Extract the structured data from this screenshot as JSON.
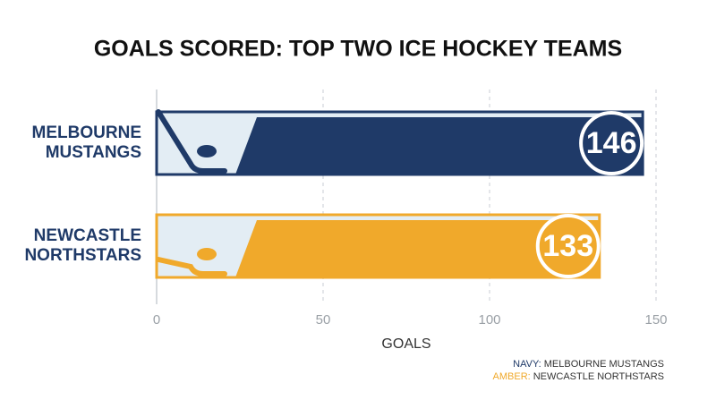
{
  "chart_data": {
    "type": "bar",
    "orientation": "horizontal",
    "title": "GOALS SCORED: TOP TWO ICE HOCKEY TEAMS",
    "categories": [
      "MELBOURNE MUSTANGS",
      "NEWCASTLE NORTHSTARS"
    ],
    "values": [
      146,
      133
    ],
    "colors": [
      "#1f3a68",
      "#f0a92b"
    ],
    "x_label": "GOALS",
    "xlim": [
      0,
      150
    ],
    "xticks": [
      0,
      50,
      100,
      150
    ],
    "grid": true,
    "legend": [
      {
        "key": "NAVY:",
        "name": "MELBOURNE MUSTANGS"
      },
      {
        "key": "AMBER:",
        "name": "NEWCASTLE NORTHSTARS"
      }
    ]
  }
}
